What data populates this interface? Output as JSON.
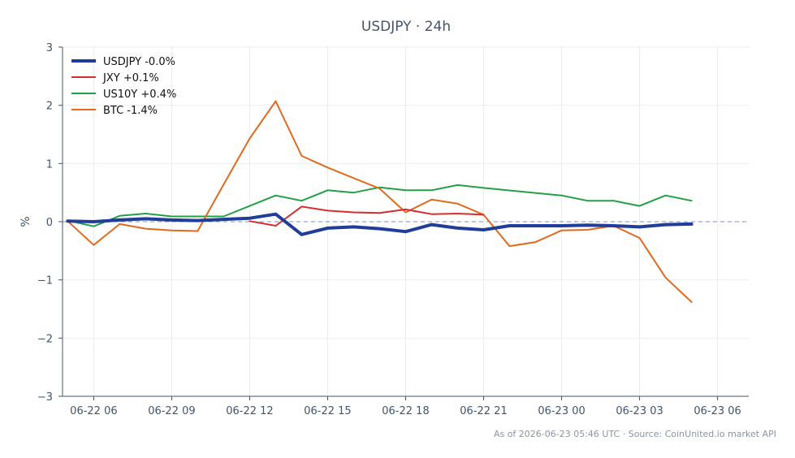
{
  "chart_data": {
    "type": "line",
    "title": "USDJPY · 24h",
    "ylabel": "%",
    "xlabel": "",
    "ylim": [
      -3,
      3
    ],
    "yticks": [
      3,
      2,
      1,
      0,
      -1,
      -2,
      -3
    ],
    "ytick_labels": [
      "3",
      "2",
      "1",
      "0",
      "−1",
      "−2",
      "−3"
    ],
    "xlim_hours": [
      4.8,
      31.2
    ],
    "xticks": [
      {
        "h": 6,
        "label": "06-22 06"
      },
      {
        "h": 9,
        "label": "06-22 09"
      },
      {
        "h": 12,
        "label": "06-22 12"
      },
      {
        "h": 15,
        "label": "06-22 15"
      },
      {
        "h": 18,
        "label": "06-22 18"
      },
      {
        "h": 21,
        "label": "06-22 21"
      },
      {
        "h": 24,
        "label": "06-23 00"
      },
      {
        "h": 27,
        "label": "06-23 03"
      },
      {
        "h": 30,
        "label": "06-23 06"
      }
    ],
    "grid": true,
    "zero_line": true,
    "legend_position": "top-left",
    "series": [
      {
        "name": "USDJPY -0.0%",
        "color": "#1f3d99",
        "width": 4,
        "x": [
          5,
          6,
          7,
          8,
          9,
          10,
          11,
          12,
          13,
          14,
          15,
          16,
          17,
          18,
          19,
          20,
          21,
          22,
          23,
          24,
          25,
          26,
          27,
          28,
          29
        ],
        "y": [
          0.01,
          0.0,
          0.03,
          0.05,
          0.03,
          0.02,
          0.04,
          0.06,
          0.13,
          -0.22,
          -0.11,
          -0.09,
          -0.12,
          -0.17,
          -0.05,
          -0.11,
          -0.14,
          -0.07,
          -0.07,
          -0.07,
          -0.06,
          -0.07,
          -0.09,
          -0.05,
          -0.04
        ]
      },
      {
        "name": "JXY +0.1%",
        "color": "#d62d2d",
        "width": 2,
        "x": [
          12,
          13,
          14,
          15,
          16,
          17,
          18,
          19,
          20,
          21
        ],
        "y": [
          0.01,
          -0.07,
          0.26,
          0.19,
          0.16,
          0.15,
          0.21,
          0.13,
          0.14,
          0.12
        ]
      },
      {
        "name": "US10Y +0.4%",
        "color": "#22a045",
        "width": 2,
        "x": [
          5,
          6,
          7,
          8,
          9,
          10,
          11,
          12,
          13,
          14,
          15,
          16,
          17,
          18,
          19,
          20,
          21,
          24,
          25,
          26,
          27,
          28,
          29
        ],
        "y": [
          0.02,
          -0.08,
          0.1,
          0.14,
          0.09,
          0.09,
          0.09,
          0.27,
          0.45,
          0.36,
          0.54,
          0.5,
          0.59,
          0.54,
          0.54,
          0.63,
          0.58,
          0.45,
          0.36,
          0.36,
          0.27,
          0.45,
          0.36
        ]
      },
      {
        "name": "BTC -1.4%",
        "color": "#e06a1e",
        "width": 2,
        "x": [
          5,
          6,
          7,
          8,
          9,
          10,
          11,
          12,
          13,
          14,
          15,
          16,
          17,
          18,
          19,
          20,
          21,
          22,
          23,
          24,
          25,
          26,
          27,
          28,
          29
        ],
        "y": [
          0.01,
          -0.4,
          -0.04,
          -0.12,
          -0.15,
          -0.16,
          0.64,
          1.43,
          2.07,
          1.13,
          0.93,
          0.75,
          0.57,
          0.16,
          0.38,
          0.31,
          0.12,
          -0.42,
          -0.35,
          -0.15,
          -0.14,
          -0.07,
          -0.28,
          -0.96,
          -1.38
        ]
      }
    ]
  },
  "footer": "As of 2026-06-23 05:46 UTC · Source: CoinUnited.io market API"
}
